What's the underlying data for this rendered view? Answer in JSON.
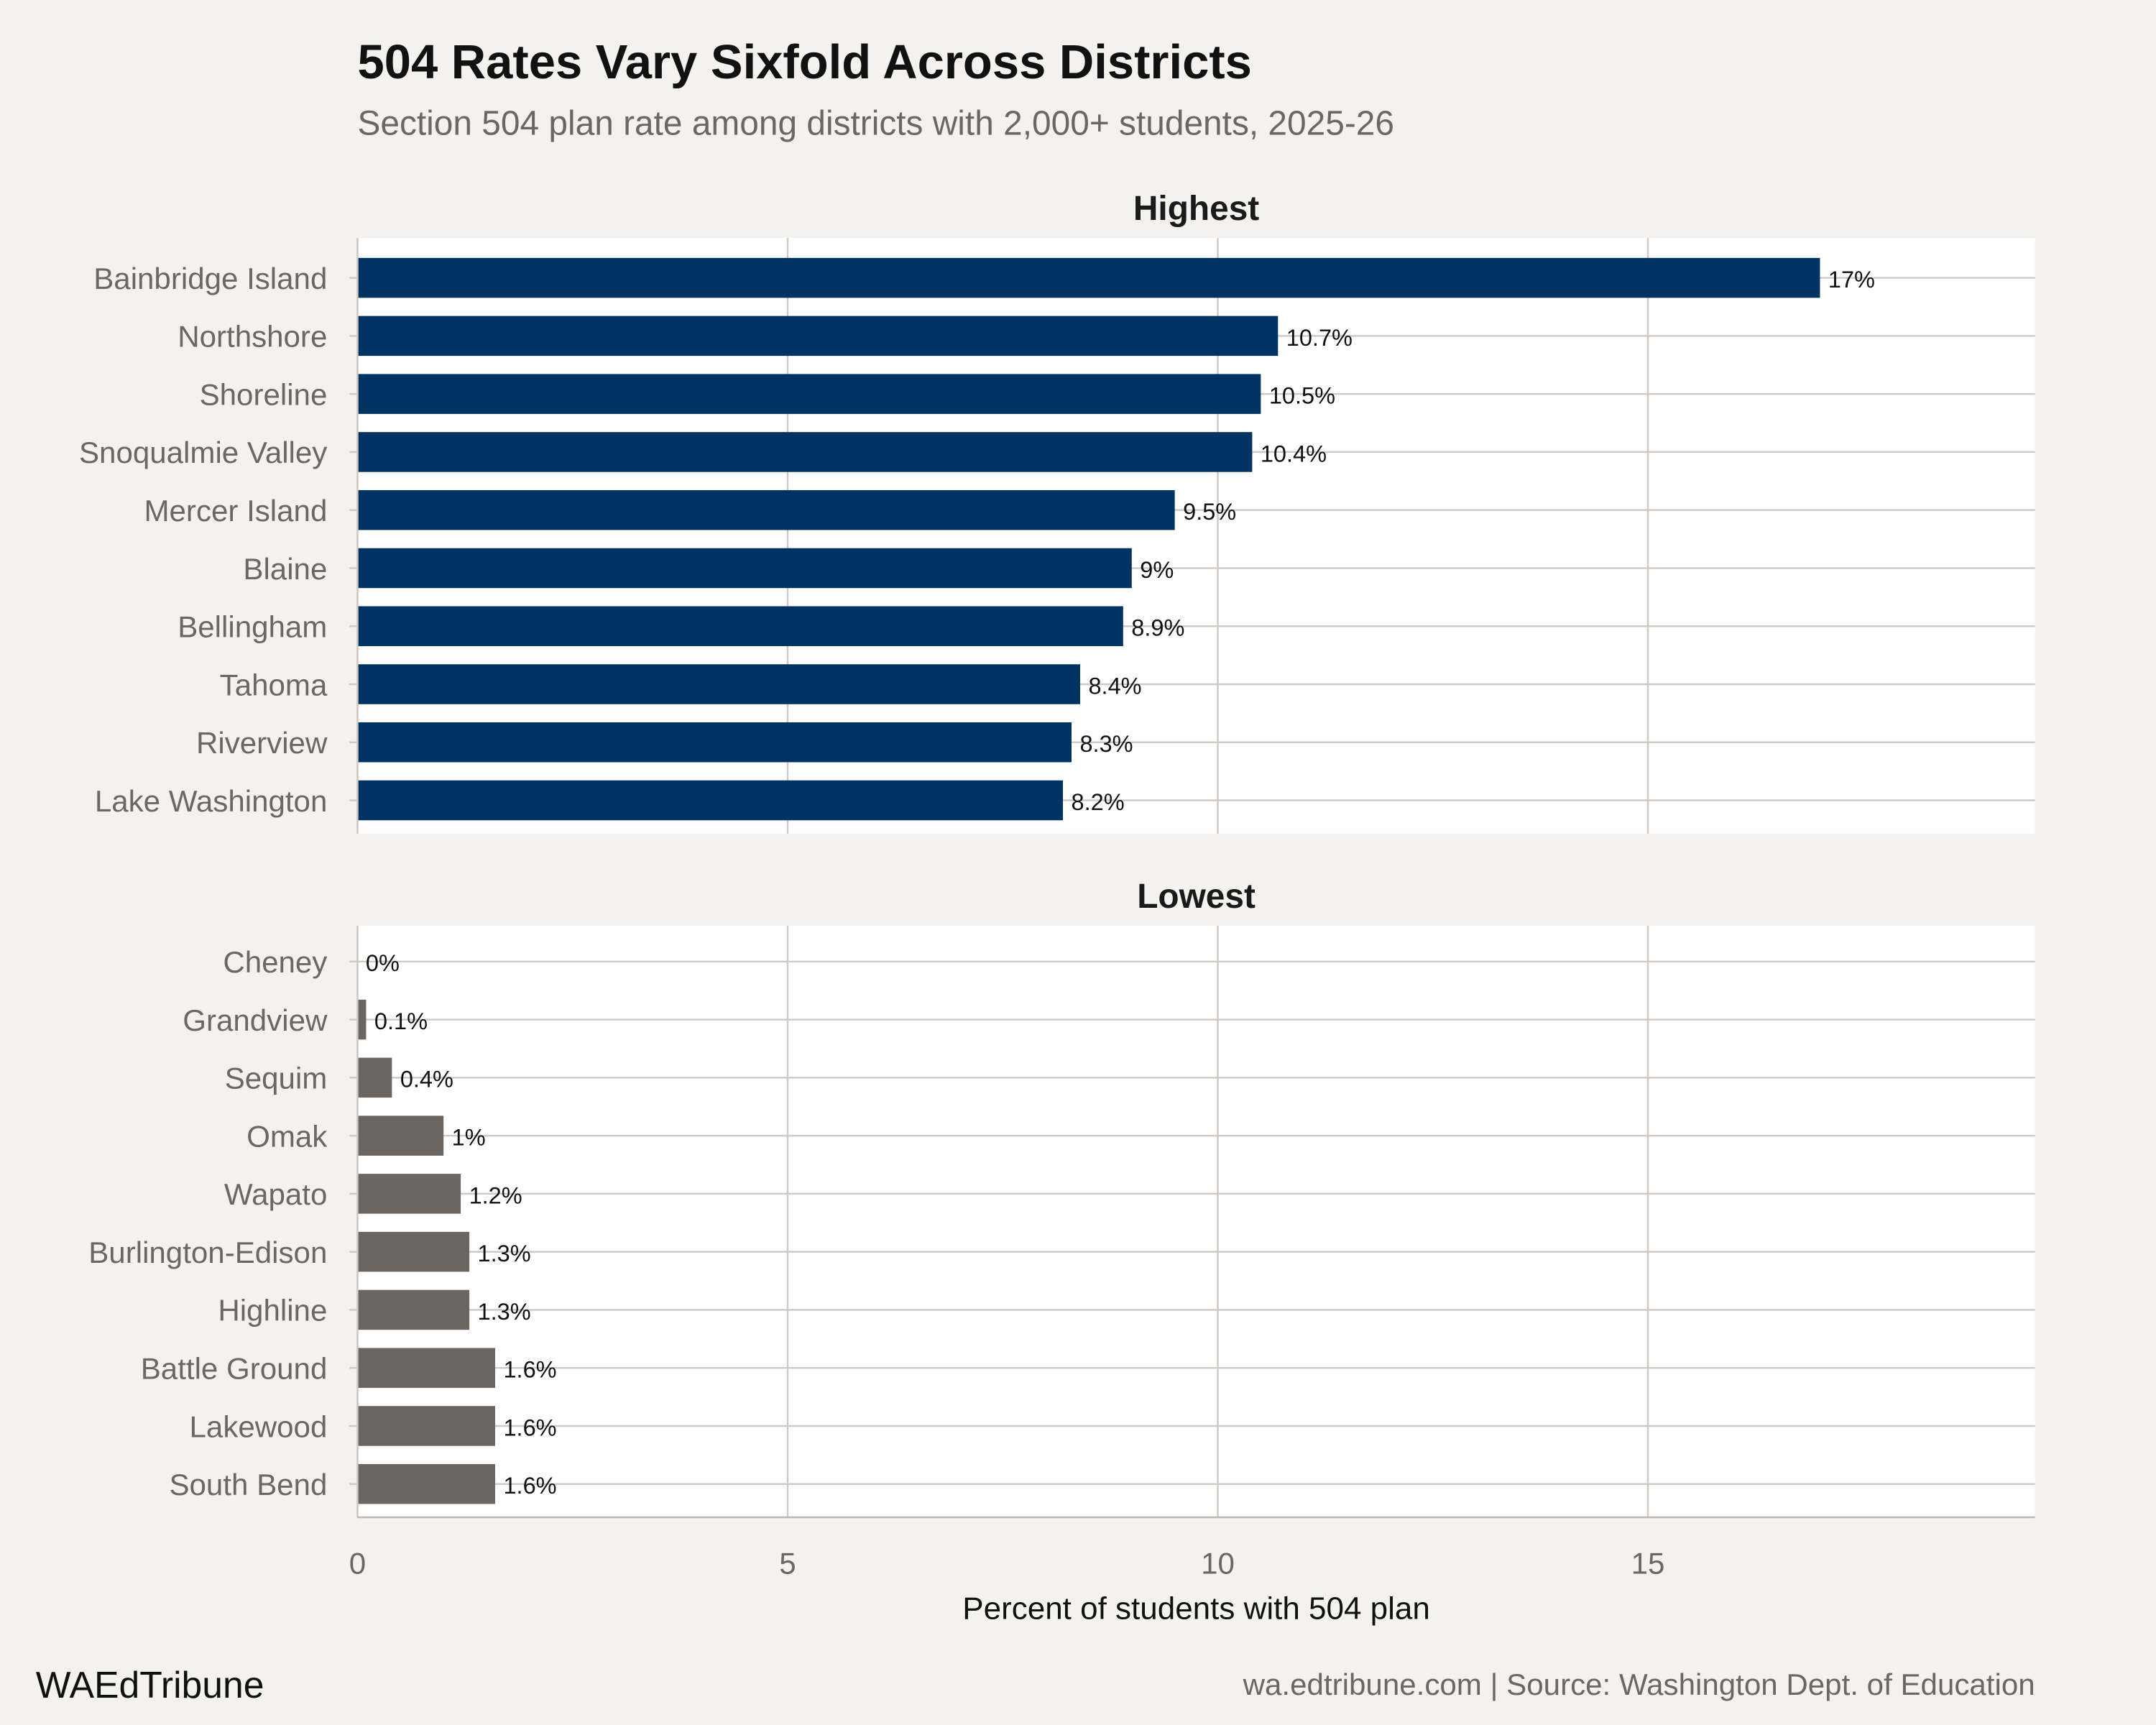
{
  "header": {
    "title": "504 Rates Vary Sixfold Across Districts",
    "subtitle": "Section 504 plan rate among districts with 2,000+ students, 2025-26"
  },
  "footer": {
    "brand": "WAEdTribune",
    "caption": "wa.edtribune.com | Source: Washington Dept. of Education"
  },
  "chart_data": {
    "type": "bar",
    "orientation": "horizontal",
    "xlabel": "Percent of students with 504 plan",
    "xlim": [
      0,
      19.5
    ],
    "xticks": [
      0,
      5,
      10,
      15
    ],
    "grid": true,
    "panels": [
      {
        "title": "Highest",
        "color": "#003361",
        "categories": [
          "Bainbridge Island",
          "Northshore",
          "Shoreline",
          "Snoqualmie Valley",
          "Mercer Island",
          "Blaine",
          "Bellingham",
          "Tahoma",
          "Riverview",
          "Lake Washington"
        ],
        "values": [
          17,
          10.7,
          10.5,
          10.4,
          9.5,
          9,
          8.9,
          8.4,
          8.3,
          8.2
        ],
        "labels": [
          "17%",
          "10.7%",
          "10.5%",
          "10.4%",
          "9.5%",
          "9%",
          "8.9%",
          "8.4%",
          "8.3%",
          "8.2%"
        ]
      },
      {
        "title": "Lowest",
        "color": "#6b6660",
        "categories": [
          "Cheney",
          "Grandview",
          "Sequim",
          "Omak",
          "Wapato",
          "Burlington-Edison",
          "Highline",
          "Battle Ground",
          "Lakewood",
          "South Bend"
        ],
        "values": [
          0,
          0.1,
          0.4,
          1,
          1.2,
          1.3,
          1.3,
          1.6,
          1.6,
          1.6
        ],
        "labels": [
          "0%",
          "0.1%",
          "0.4%",
          "1%",
          "1.2%",
          "1.3%",
          "1.3%",
          "1.6%",
          "1.6%",
          "1.6%"
        ]
      }
    ]
  }
}
